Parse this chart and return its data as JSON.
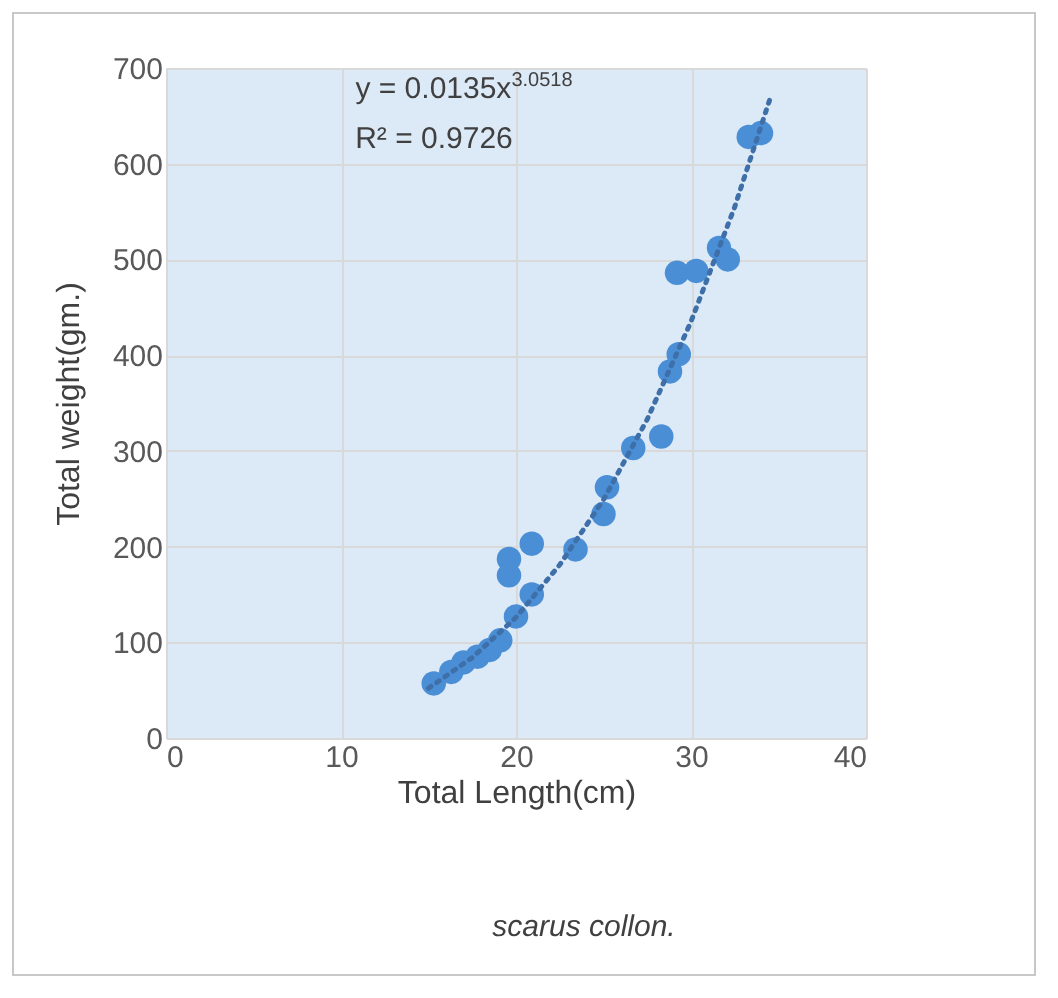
{
  "chart_data": {
    "type": "scatter",
    "xlabel": "Total Length(cm)",
    "ylabel": "Total weight(gm.)",
    "annotations": [
      "y = 0.0135x$^{3.0518}$",
      "R² = 0.9726",
      "scarus collon."
    ],
    "xlim": [
      0,
      40
    ],
    "xticks": [
      0,
      10,
      20,
      30,
      40
    ],
    "ylim": [
      0,
      700
    ],
    "yticks": [
      0,
      100,
      200,
      300,
      400,
      500,
      600,
      700
    ],
    "grid": true,
    "marker": "circle",
    "series": [
      {
        "type": "scatter",
        "color": "#4a8ed6",
        "x": [
          15.3,
          16.3,
          17.0,
          17.8,
          18.5,
          19.1,
          20.0,
          20.9,
          19.6,
          19.6,
          20.9,
          23.4,
          25.0,
          25.2,
          26.7,
          28.3,
          28.8,
          29.3,
          29.2,
          30.3,
          31.6,
          32.1,
          33.3,
          34.0
        ],
        "values": [
          57,
          69,
          79,
          85,
          92,
          102,
          127,
          150,
          170,
          187,
          203,
          197,
          234,
          262,
          303,
          315,
          383,
          401,
          486,
          488,
          512,
          500,
          628,
          632
        ]
      },
      {
        "type": "line",
        "line_style": "dotted",
        "marker": "none",
        "color": "#3f6fa8",
        "x": [
          15,
          17.5,
          20,
          22.5,
          25,
          27.5,
          30,
          32.5,
          34.5
        ],
        "values": [
          52,
          84,
          126,
          181,
          249,
          333,
          435,
          555,
          667
        ]
      }
    ]
  }
}
